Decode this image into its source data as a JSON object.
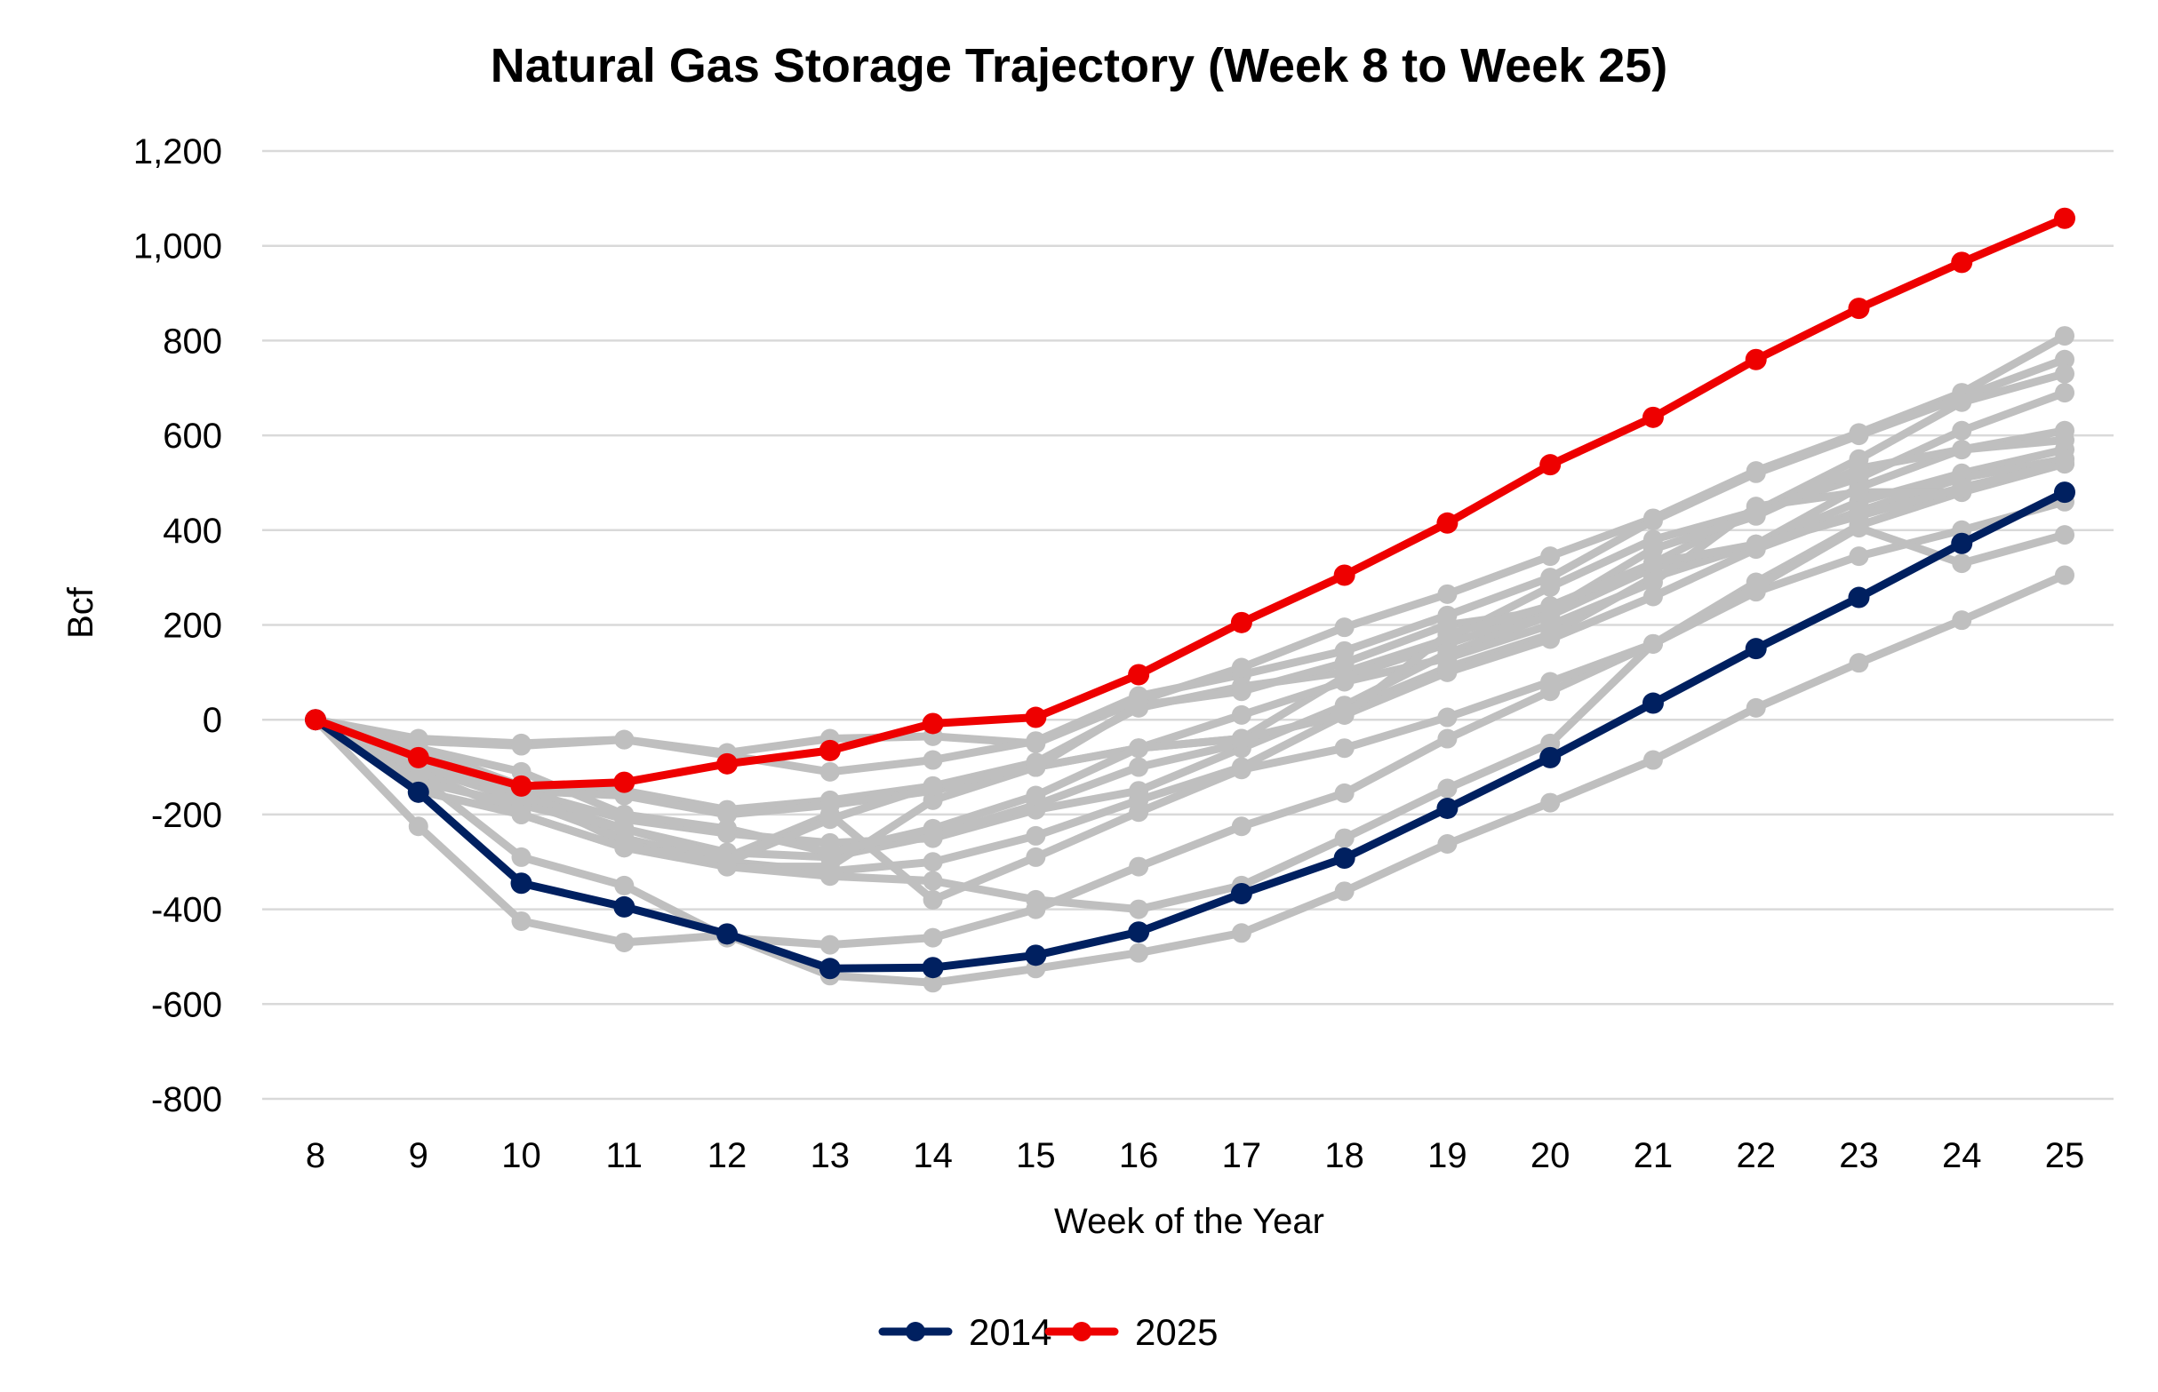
{
  "chart_data": {
    "type": "line",
    "title": "Natural Gas Storage Trajectory (Week 8 to Week 25)",
    "xlabel": "Week of the Year",
    "ylabel": "Bcf",
    "x": [
      8,
      9,
      10,
      11,
      12,
      13,
      14,
      15,
      16,
      17,
      18,
      19,
      20,
      21,
      22,
      23,
      24,
      25
    ],
    "x_tick_labels": [
      "8",
      "9",
      "10",
      "11",
      "12",
      "13",
      "14",
      "15",
      "16",
      "17",
      "18",
      "19",
      "20",
      "21",
      "22",
      "23",
      "24",
      "25"
    ],
    "ylim": [
      -800,
      1200
    ],
    "y_tick_labels": [
      "1,200",
      "1,000",
      "800",
      "600",
      "400",
      "200",
      "0",
      "-200",
      "-400",
      "-600",
      "-800"
    ],
    "y_ticks": [
      1200,
      1000,
      800,
      600,
      400,
      200,
      0,
      -200,
      -400,
      -600,
      -800
    ],
    "grid": true,
    "legend_position": "bottom",
    "colors": {
      "highlight_2025": "#ee0000",
      "highlight_2014": "#002060",
      "other_years": "#bfbfbf",
      "grid": "#d9d9d9"
    },
    "series": [
      {
        "name": "2014",
        "legend": true,
        "color": "#002060",
        "values": [
          0,
          -153,
          -345,
          -395,
          -452,
          -525,
          -523,
          -497,
          -448,
          -367,
          -292,
          -187,
          -80,
          35,
          150,
          258,
          372,
          480
        ]
      },
      {
        "name": "2025",
        "legend": true,
        "color": "#ee0000",
        "values": [
          0,
          -80,
          -140,
          -132,
          -93,
          -65,
          -8,
          5,
          95,
          205,
          305,
          415,
          538,
          638,
          760,
          868,
          965,
          1058
        ]
      }
    ],
    "background_series": [
      {
        "values": [
          0,
          -40,
          -50,
          -42,
          -70,
          -40,
          -35,
          -50,
          40,
          110,
          195,
          265,
          345,
          425,
          525,
          605,
          690,
          810
        ]
      },
      {
        "values": [
          0,
          -45,
          -55,
          -42,
          -75,
          -110,
          -85,
          -45,
          50,
          95,
          145,
          220,
          300,
          420,
          520,
          600,
          680,
          760
        ]
      },
      {
        "values": [
          0,
          -60,
          -140,
          -150,
          -190,
          -170,
          -140,
          -90,
          25,
          70,
          100,
          170,
          280,
          380,
          440,
          550,
          670,
          730
        ]
      },
      {
        "values": [
          0,
          -70,
          -150,
          -160,
          -200,
          -180,
          -150,
          -100,
          -60,
          -40,
          90,
          160,
          230,
          330,
          440,
          510,
          610,
          690
        ]
      },
      {
        "values": [
          0,
          -80,
          -150,
          -210,
          -240,
          -260,
          -250,
          -190,
          -150,
          -60,
          30,
          140,
          220,
          320,
          370,
          490,
          570,
          610
        ]
      },
      {
        "values": [
          0,
          -90,
          -160,
          -230,
          -280,
          -290,
          -245,
          -180,
          -100,
          -50,
          20,
          110,
          180,
          300,
          370,
          460,
          520,
          570
        ]
      },
      {
        "values": [
          0,
          -100,
          -170,
          -250,
          -300,
          -320,
          -300,
          -245,
          -170,
          -100,
          10,
          100,
          170,
          260,
          360,
          440,
          510,
          550
        ]
      },
      {
        "values": [
          0,
          -95,
          -155,
          -260,
          -310,
          -310,
          -170,
          -100,
          -60,
          10,
          80,
          130,
          200,
          290,
          450,
          480,
          480,
          540
        ]
      },
      {
        "values": [
          0,
          -110,
          -200,
          -270,
          -310,
          -330,
          -340,
          -380,
          -400,
          -350,
          -250,
          -145,
          -50,
          160,
          290,
          410,
          480,
          550
        ]
      },
      {
        "values": [
          0,
          -120,
          -290,
          -350,
          -460,
          -475,
          -460,
          -400,
          -310,
          -225,
          -155,
          -40,
          60,
          160,
          270,
          345,
          400,
          460
        ]
      },
      {
        "values": [
          0,
          -130,
          -180,
          -230,
          -290,
          -200,
          -380,
          -290,
          -195,
          -105,
          -60,
          5,
          80,
          160,
          280,
          405,
          330,
          390
        ]
      },
      {
        "values": [
          0,
          -225,
          -425,
          -470,
          -455,
          -540,
          -555,
          -525,
          -492,
          -450,
          -362,
          -262,
          -175,
          -85,
          25,
          120,
          210,
          305
        ]
      },
      {
        "values": [
          0,
          -150,
          -200,
          -270,
          -300,
          -210,
          -140,
          -100,
          30,
          60,
          120,
          200,
          230,
          360,
          430,
          530,
          570,
          590
        ]
      },
      {
        "values": [
          0,
          -60,
          -110,
          -200,
          -230,
          -280,
          -230,
          -160,
          -60,
          -40,
          10,
          180,
          240,
          330,
          370,
          430,
          490,
          540
        ]
      }
    ]
  }
}
